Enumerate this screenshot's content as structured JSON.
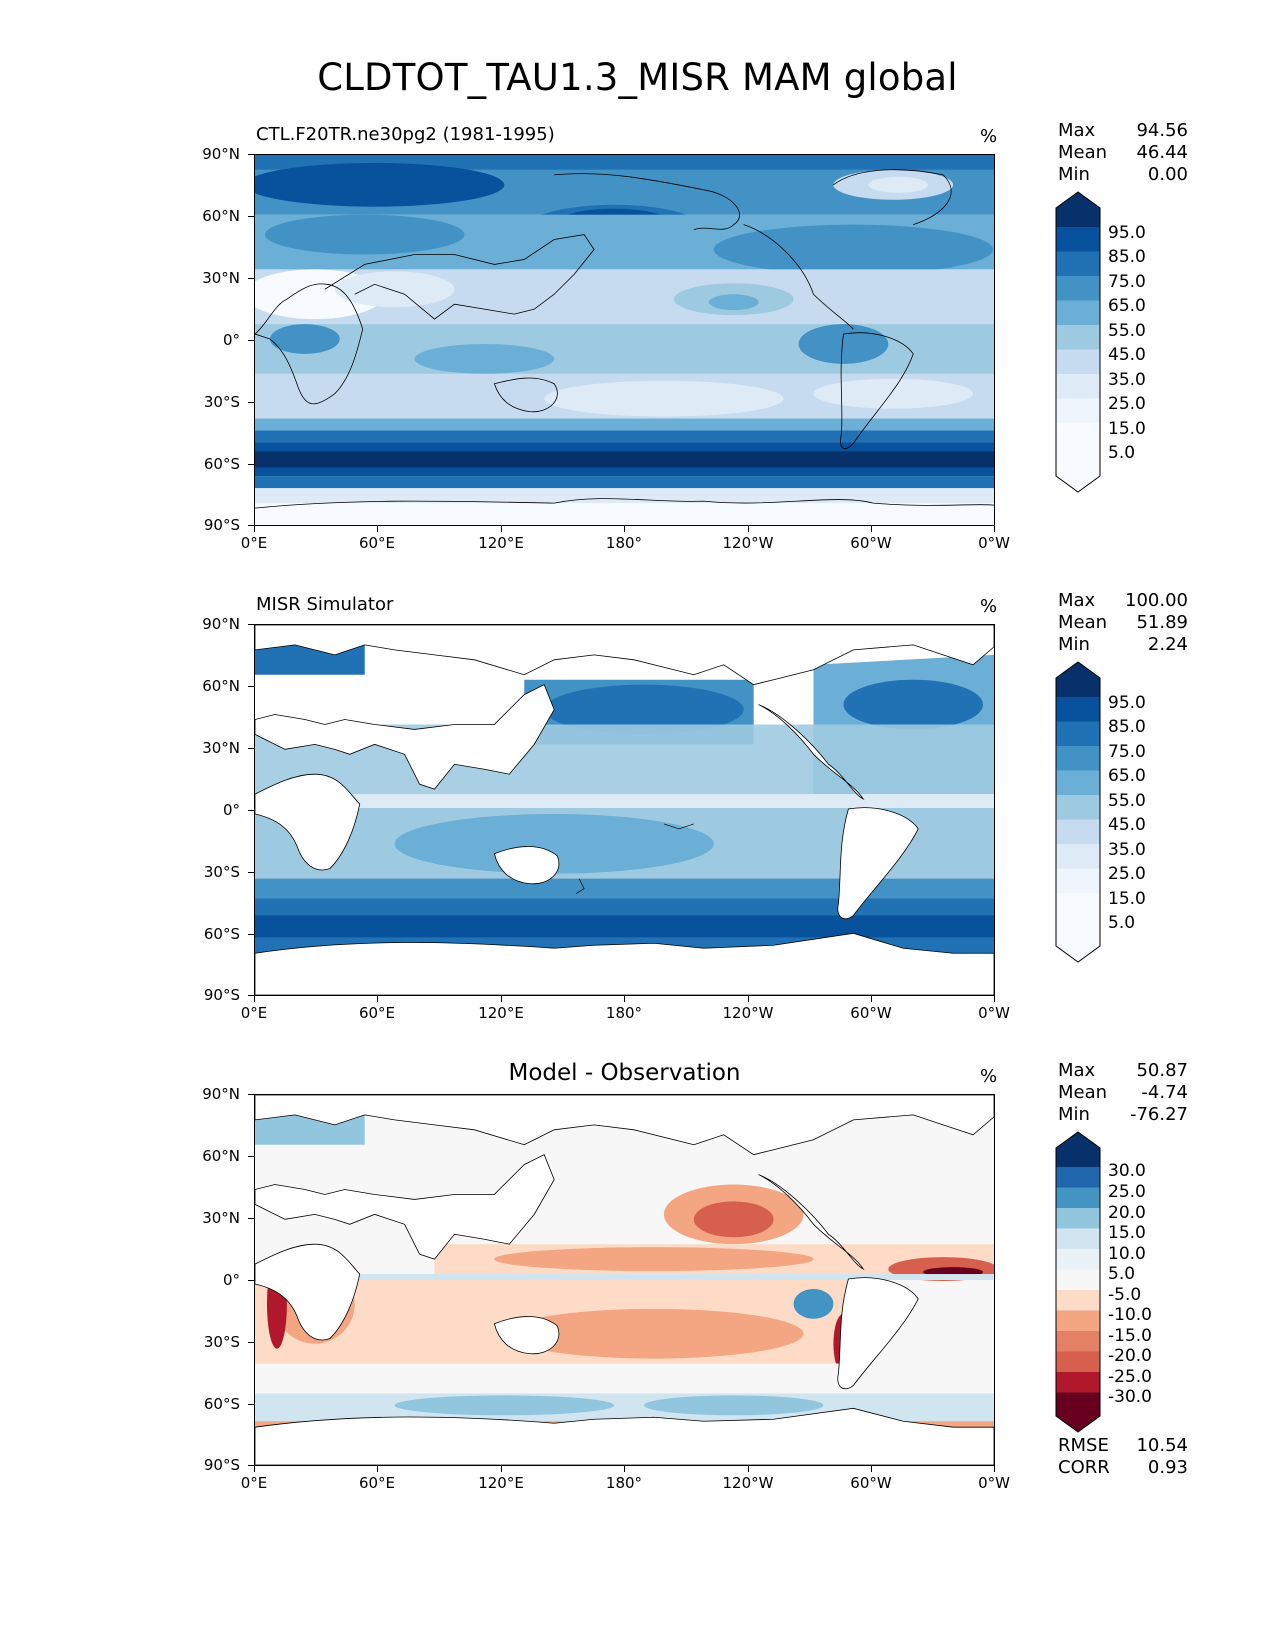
{
  "title": "CLDTOT_TAU1.3_MISR MAM global",
  "x_ticks": [
    "0°E",
    "60°E",
    "120°E",
    "180°",
    "120°W",
    "60°W",
    "0°W"
  ],
  "y_ticks": [
    "90°N",
    "60°N",
    "30°N",
    "0°",
    "30°S",
    "60°S",
    "90°S"
  ],
  "panels": [
    {
      "title": "CTL.F20TR.ne30pg2 (1981-1995)",
      "units": "%",
      "stats": {
        "max_label": "Max",
        "max": "94.56",
        "mean_label": "Mean",
        "mean": "46.44",
        "min_label": "Min",
        "min": "0.00"
      },
      "colorbar_labels": [
        "95.0",
        "85.0",
        "75.0",
        "65.0",
        "55.0",
        "45.0",
        "35.0",
        "25.0",
        "15.0",
        "5.0"
      ],
      "colors": [
        "#08306b",
        "#08519c",
        "#2171b5",
        "#4292c6",
        "#6baed6",
        "#9ecae1",
        "#c6dbef",
        "#deebf7",
        "#f7fbff"
      ]
    },
    {
      "title": "MISR Simulator",
      "units": "%",
      "stats": {
        "max_label": "Max",
        "max": "100.00",
        "mean_label": "Mean",
        "mean": "51.89",
        "min_label": "Min",
        "min": "2.24"
      },
      "colorbar_labels": [
        "95.0",
        "85.0",
        "75.0",
        "65.0",
        "55.0",
        "45.0",
        "35.0",
        "25.0",
        "15.0",
        "5.0"
      ],
      "colors": [
        "#08306b",
        "#08519c",
        "#2171b5",
        "#4292c6",
        "#6baed6",
        "#9ecae1",
        "#c6dbef",
        "#deebf7",
        "#f7fbff"
      ]
    },
    {
      "title": "Model - Observation",
      "units": "%",
      "stats": {
        "max_label": "Max",
        "max": "50.87",
        "mean_label": "Mean",
        "mean": "-4.74",
        "min_label": "Min",
        "min": "-76.27"
      },
      "colorbar_labels": [
        "30.0",
        "25.0",
        "20.0",
        "15.0",
        "10.0",
        "5.0",
        "-5.0",
        "-10.0",
        "-15.0",
        "-20.0",
        "-25.0",
        "-30.0"
      ],
      "colors": [
        "#08306b",
        "#2166ac",
        "#4393c3",
        "#92c5de",
        "#d1e5f0",
        "#f7f7f7",
        "#fddbc7",
        "#f4a582",
        "#d6604d",
        "#b2182b",
        "#67001f"
      ],
      "extra_stats": {
        "rmse_label": "RMSE",
        "rmse": "10.54",
        "corr_label": "CORR",
        "corr": "0.93"
      }
    }
  ]
}
